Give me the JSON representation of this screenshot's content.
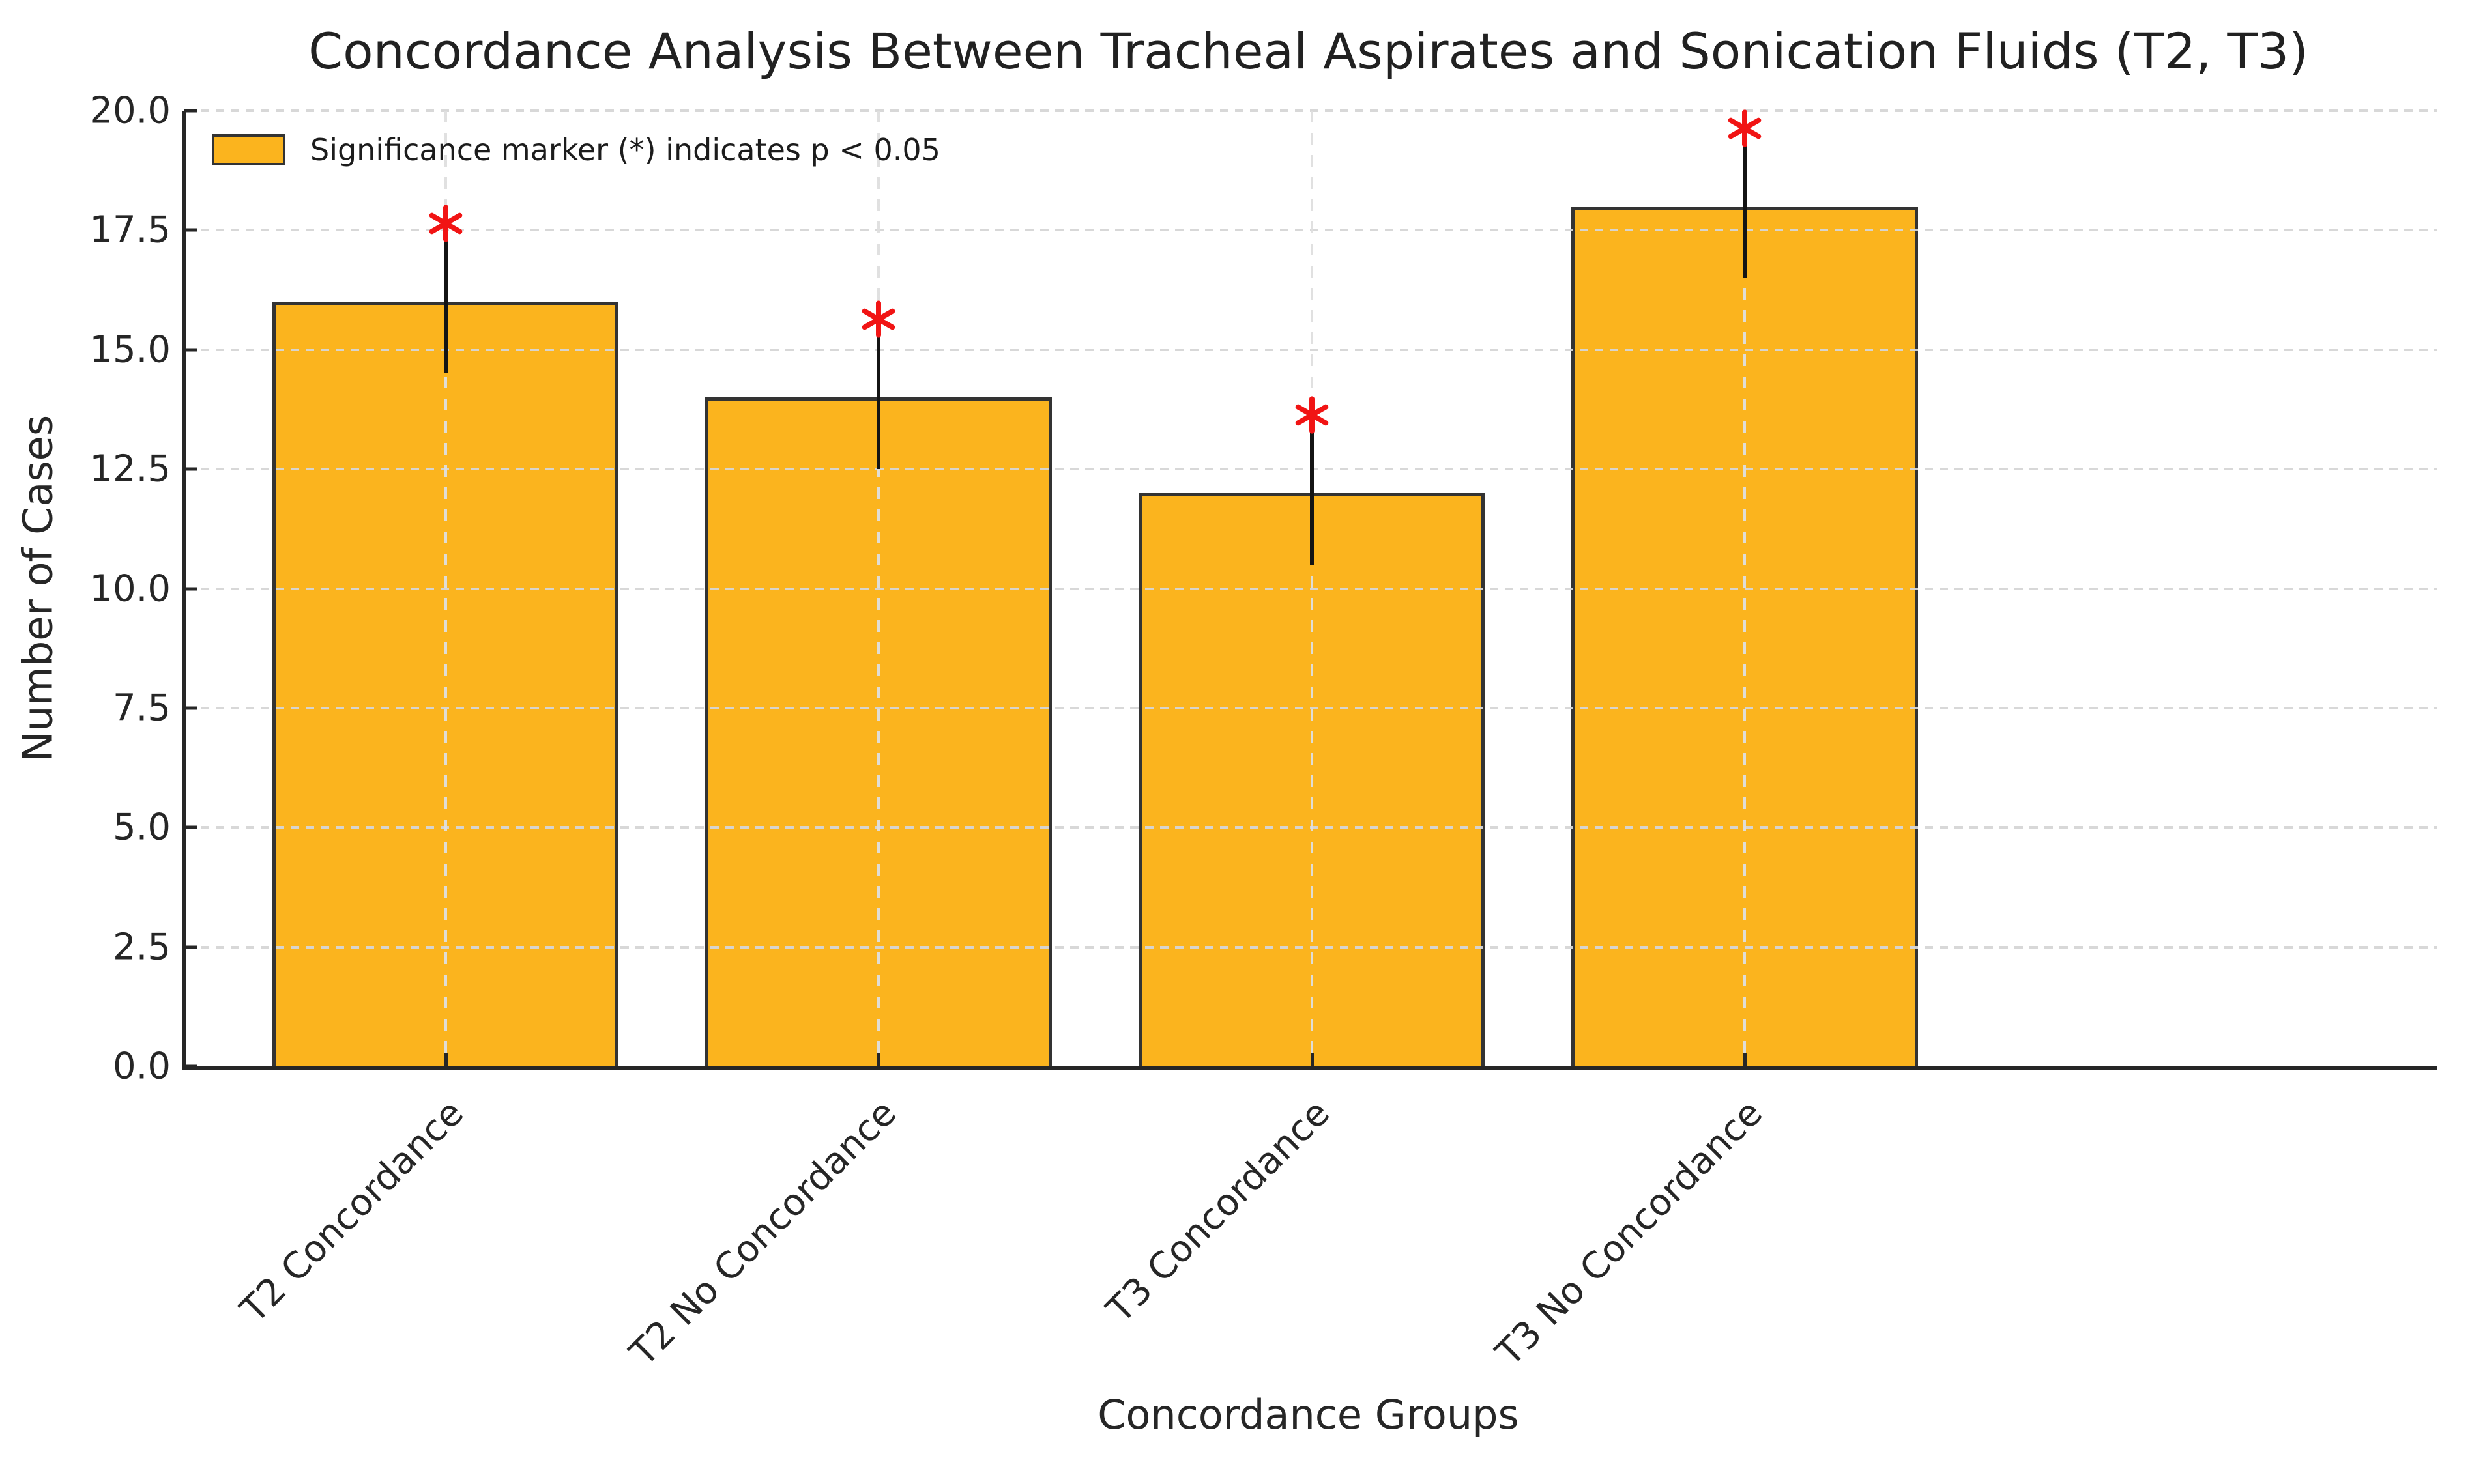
{
  "chart_data": {
    "type": "bar",
    "title": "Concordance Analysis Between Tracheal Aspirates and Sonication Fluids (T2, T3)",
    "xlabel": "Concordance Groups",
    "ylabel": "Number of Cases",
    "categories": [
      "T2 Concordance",
      "T2 No Concordance",
      "T3 Concordance",
      "T3 No Concordance"
    ],
    "values": [
      16,
      14,
      12,
      18
    ],
    "error": [
      1.5,
      1.5,
      1.5,
      1.5
    ],
    "significance_markers": [
      "*",
      "*",
      "*",
      "*"
    ],
    "ylim": [
      0,
      20
    ],
    "ytick_step": 2.5,
    "ytick_labels": [
      "0.0",
      "2.5",
      "5.0",
      "7.5",
      "10.0",
      "12.5",
      "15.0",
      "17.5",
      "20.0"
    ],
    "bar_width_units": 0.8,
    "grid": "dashed, horizontal and vertical, drawn above bars",
    "legend": {
      "label": "Significance marker (*) indicates p < 0.05",
      "position": "upper left"
    },
    "colors": {
      "bar_fill": "#FBB41E",
      "bar_edge": "#333333",
      "error_bar": "#141414",
      "significance_marker": "#F11414",
      "grid": "#D6D6D6",
      "spine": "#262626",
      "text": "#212121"
    }
  }
}
